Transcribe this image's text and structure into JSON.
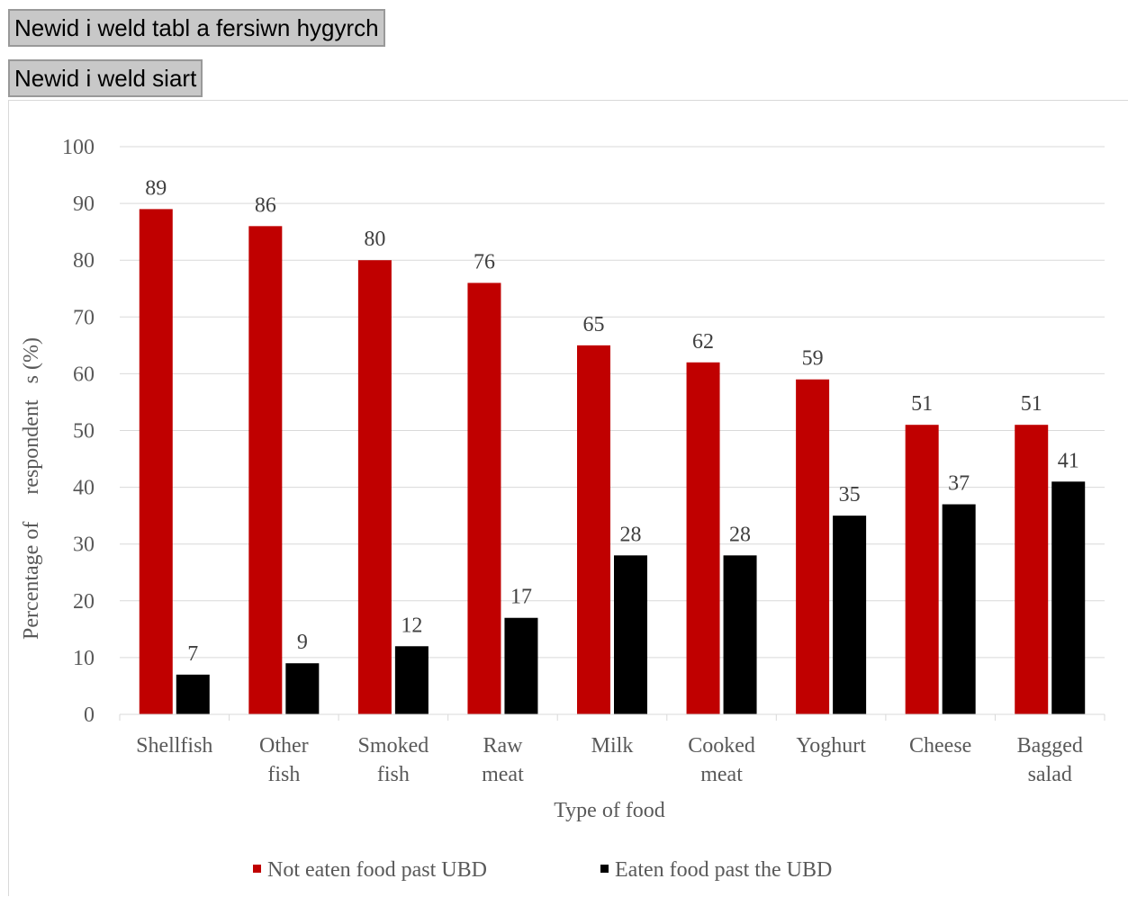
{
  "controls": {
    "table_toggle_label": "Newid i weld tabl a fersiwn hygyrch",
    "chart_toggle_label": "Newid i weld siart"
  },
  "chart_data": {
    "type": "bar",
    "title": "",
    "xlabel": "Type of food",
    "ylabel": "Percentage of     respondent   s (%)",
    "ylim": [
      0,
      100
    ],
    "yticks": [
      0,
      10,
      20,
      30,
      40,
      50,
      60,
      70,
      80,
      90,
      100
    ],
    "grid": true,
    "legend_position": "bottom",
    "categories": [
      [
        "Shellfish"
      ],
      [
        "Other",
        "fish"
      ],
      [
        "Smoked",
        "fish"
      ],
      [
        "Raw",
        "meat"
      ],
      [
        "Milk"
      ],
      [
        "Cooked",
        "meat"
      ],
      [
        "Yoghurt"
      ],
      [
        "Cheese"
      ],
      [
        "Bagged",
        "salad"
      ]
    ],
    "series": [
      {
        "name": "Not eaten food past UBD",
        "color": "#c00000",
        "values": [
          89,
          86,
          80,
          76,
          65,
          62,
          59,
          51,
          51
        ]
      },
      {
        "name": "Eaten food past the UBD",
        "color": "#000000",
        "values": [
          7,
          9,
          12,
          17,
          28,
          28,
          35,
          37,
          41
        ]
      }
    ]
  }
}
